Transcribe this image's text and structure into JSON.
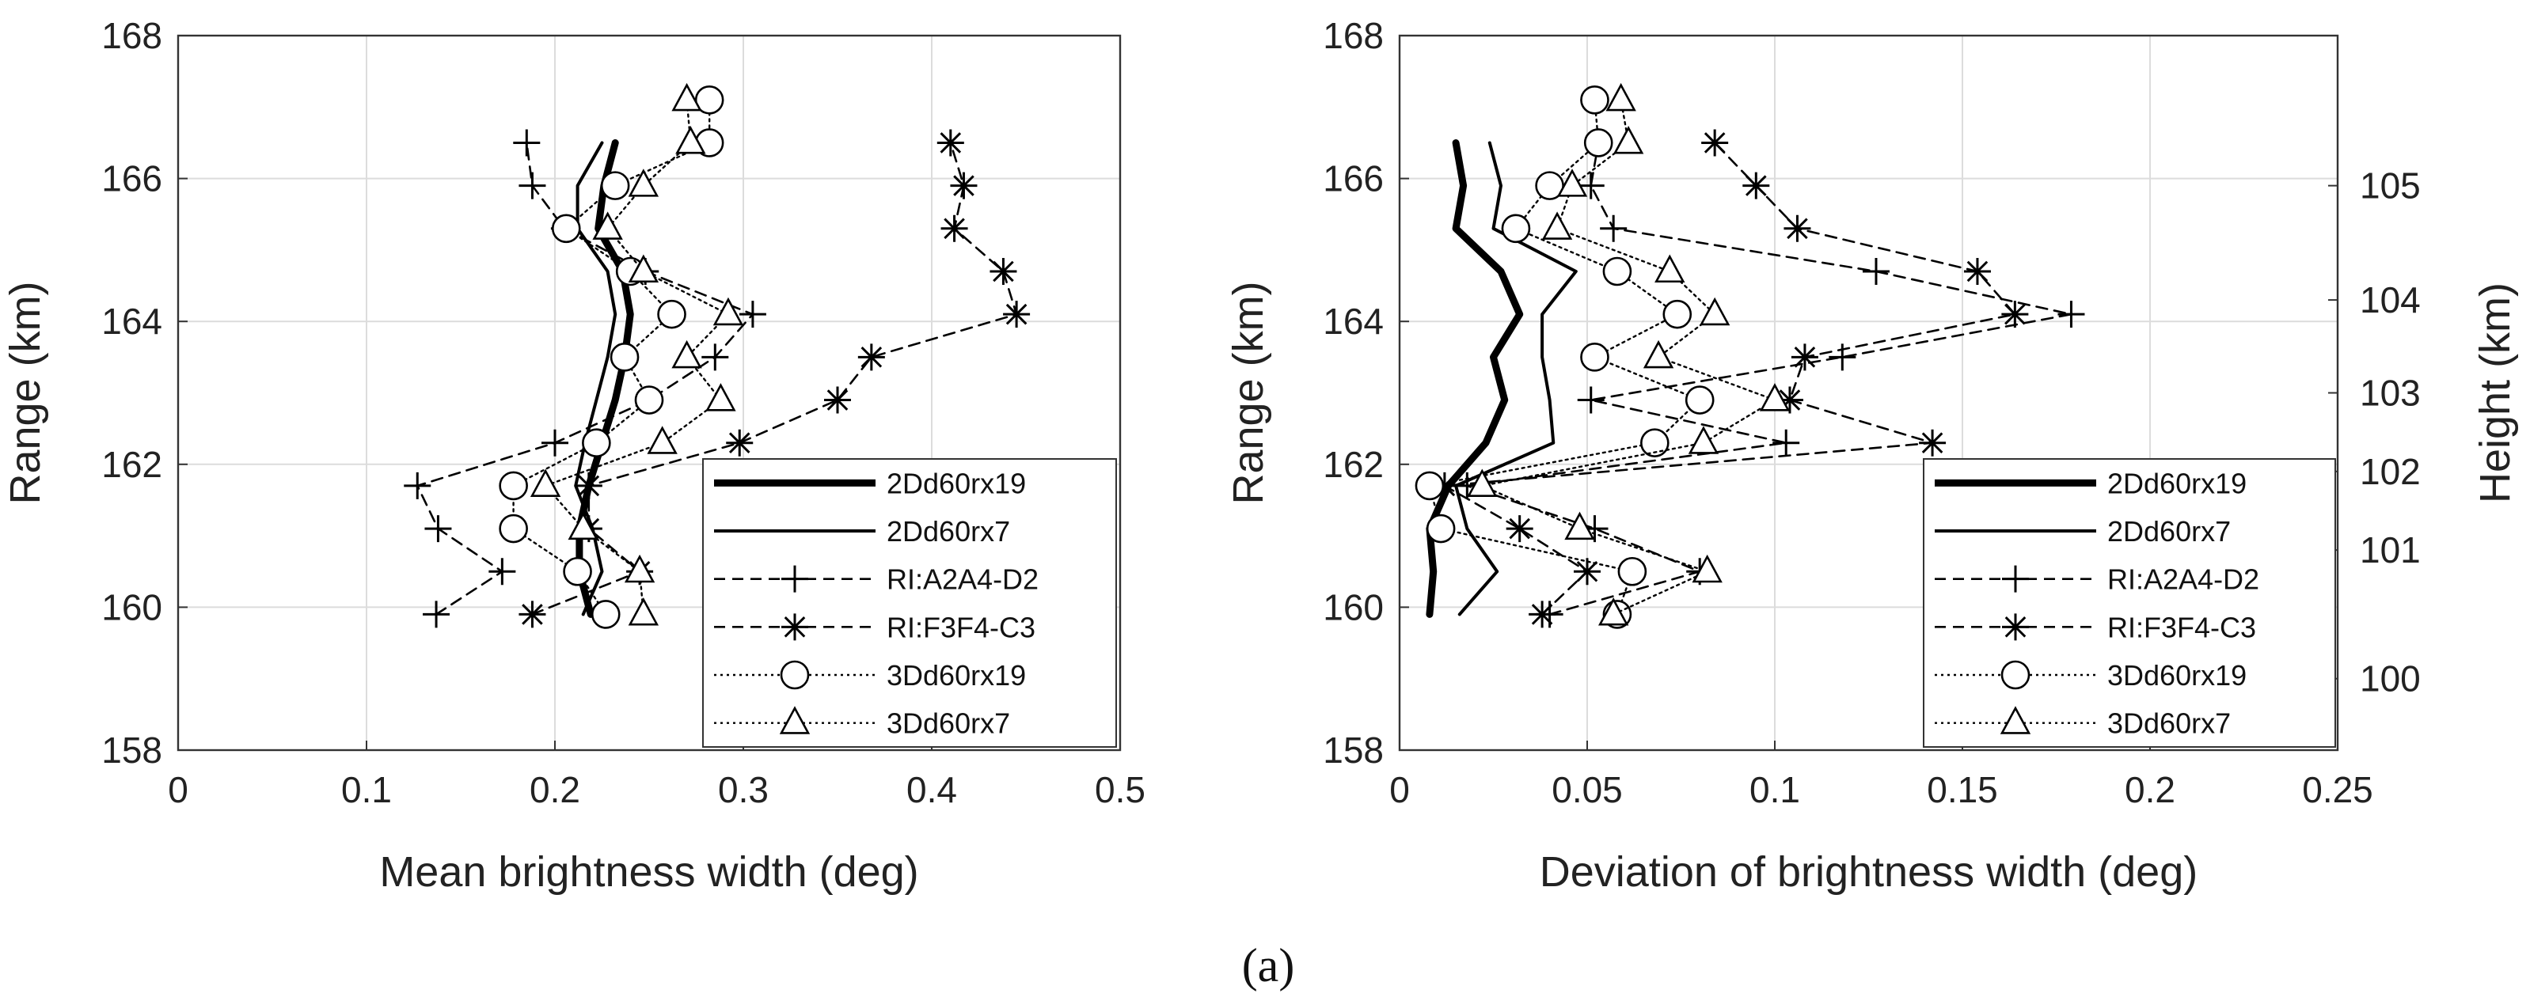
{
  "caption": "(a)",
  "chart_data": [
    {
      "type": "line",
      "panel": "left",
      "title": "",
      "xlabel": "Mean brightness width (deg)",
      "ylabel": "Range (km)",
      "xlim": [
        0,
        0.5
      ],
      "ylim": [
        158,
        168
      ],
      "xticks": [
        "0",
        "0.1",
        "0.2",
        "0.3",
        "0.4",
        "0.5"
      ],
      "yticks": [
        "158",
        "160",
        "162",
        "164",
        "166",
        "168"
      ],
      "grid": true,
      "legend_position": "bottom-right",
      "series": [
        {
          "name": "2Dd60rx19",
          "style": "thick",
          "points": [
            [
              0.219,
              159.9
            ],
            [
              0.213,
              160.5
            ],
            [
              0.213,
              161.1
            ],
            [
              0.218,
              161.7
            ],
            [
              0.225,
              162.3
            ],
            [
              0.232,
              162.9
            ],
            [
              0.237,
              163.5
            ],
            [
              0.24,
              164.1
            ],
            [
              0.236,
              164.7
            ],
            [
              0.223,
              165.3
            ],
            [
              0.226,
              165.9
            ],
            [
              0.232,
              166.5
            ]
          ]
        },
        {
          "name": "2Dd60rx7",
          "style": "thin",
          "points": [
            [
              0.215,
              159.9
            ],
            [
              0.225,
              160.5
            ],
            [
              0.22,
              161.1
            ],
            [
              0.211,
              161.7
            ],
            [
              0.216,
              162.3
            ],
            [
              0.222,
              162.9
            ],
            [
              0.228,
              163.5
            ],
            [
              0.232,
              164.1
            ],
            [
              0.228,
              164.7
            ],
            [
              0.212,
              165.3
            ],
            [
              0.212,
              165.9
            ],
            [
              0.225,
              166.5
            ]
          ]
        },
        {
          "name": "RI:A2A4-D2",
          "style": "dashed",
          "marker": "plus",
          "points": [
            [
              0.137,
              159.9
            ],
            [
              0.172,
              160.5
            ],
            [
              0.138,
              161.1
            ],
            [
              0.127,
              161.7
            ],
            [
              0.2,
              162.3
            ],
            [
              0.25,
              162.9
            ],
            [
              0.285,
              163.5
            ],
            [
              0.305,
              164.1
            ],
            [
              0.248,
              164.7
            ],
            [
              0.205,
              165.3
            ],
            [
              0.188,
              165.9
            ],
            [
              0.185,
              166.5
            ]
          ]
        },
        {
          "name": "RI:F3F4-C3",
          "style": "dashed",
          "marker": "star",
          "points": [
            [
              0.188,
              159.9
            ],
            [
              0.245,
              160.5
            ],
            [
              0.218,
              161.1
            ],
            [
              0.218,
              161.7
            ],
            [
              0.298,
              162.3
            ],
            [
              0.35,
              162.9
            ],
            [
              0.368,
              163.5
            ],
            [
              0.445,
              164.1
            ],
            [
              0.438,
              164.7
            ],
            [
              0.412,
              165.3
            ],
            [
              0.417,
              165.9
            ],
            [
              0.41,
              166.5
            ]
          ]
        },
        {
          "name": "3Dd60rx19",
          "style": "dotted",
          "marker": "circle",
          "points": [
            [
              0.227,
              159.9
            ],
            [
              0.212,
              160.5
            ],
            [
              0.178,
              161.1
            ],
            [
              0.178,
              161.7
            ],
            [
              0.222,
              162.3
            ],
            [
              0.25,
              162.9
            ],
            [
              0.237,
              163.5
            ],
            [
              0.262,
              164.1
            ],
            [
              0.24,
              164.7
            ],
            [
              0.206,
              165.3
            ],
            [
              0.232,
              165.9
            ],
            [
              0.282,
              166.5
            ],
            [
              0.282,
              167.1
            ]
          ]
        },
        {
          "name": "3Dd60rx7",
          "style": "dotted",
          "marker": "triangle",
          "points": [
            [
              0.247,
              159.9
            ],
            [
              0.245,
              160.5
            ],
            [
              0.215,
              161.1
            ],
            [
              0.195,
              161.7
            ],
            [
              0.257,
              162.3
            ],
            [
              0.288,
              162.9
            ],
            [
              0.27,
              163.5
            ],
            [
              0.292,
              164.1
            ],
            [
              0.247,
              164.7
            ],
            [
              0.228,
              165.3
            ],
            [
              0.247,
              165.9
            ],
            [
              0.272,
              166.5
            ],
            [
              0.27,
              167.1
            ]
          ]
        }
      ]
    },
    {
      "type": "line",
      "panel": "right",
      "title": "",
      "xlabel": "Deviation of brightness width (deg)",
      "ylabel": "Range (km)",
      "y2label": "Height (km)",
      "xlim": [
        0,
        0.25
      ],
      "ylim": [
        158,
        168
      ],
      "xticks": [
        "0",
        "0.05",
        "0.1",
        "0.15",
        "0.2",
        "0.25"
      ],
      "yticks": [
        "158",
        "160",
        "162",
        "164",
        "166",
        "168"
      ],
      "y2ticks": [
        {
          "label": "100",
          "range_km": 159.0
        },
        {
          "label": "101",
          "range_km": 160.8
        },
        {
          "label": "102",
          "range_km": 161.9
        },
        {
          "label": "103",
          "range_km": 163.0
        },
        {
          "label": "104",
          "range_km": 164.3
        },
        {
          "label": "105",
          "range_km": 165.9
        }
      ],
      "grid": true,
      "legend_position": "bottom-right",
      "series": [
        {
          "name": "2Dd60rx19",
          "style": "thick",
          "points": [
            [
              0.008,
              159.9
            ],
            [
              0.009,
              160.5
            ],
            [
              0.008,
              161.1
            ],
            [
              0.013,
              161.7
            ],
            [
              0.023,
              162.3
            ],
            [
              0.028,
              162.9
            ],
            [
              0.025,
              163.5
            ],
            [
              0.032,
              164.1
            ],
            [
              0.027,
              164.7
            ],
            [
              0.015,
              165.3
            ],
            [
              0.017,
              165.9
            ],
            [
              0.015,
              166.5
            ]
          ]
        },
        {
          "name": "2Dd60rx7",
          "style": "thin",
          "points": [
            [
              0.016,
              159.9
            ],
            [
              0.026,
              160.5
            ],
            [
              0.018,
              161.1
            ],
            [
              0.015,
              161.7
            ],
            [
              0.041,
              162.3
            ],
            [
              0.04,
              162.9
            ],
            [
              0.038,
              163.5
            ],
            [
              0.038,
              164.1
            ],
            [
              0.047,
              164.7
            ],
            [
              0.025,
              165.3
            ],
            [
              0.027,
              165.9
            ],
            [
              0.024,
              166.5
            ]
          ]
        },
        {
          "name": "RI:A2A4-D2",
          "style": "dashed",
          "marker": "plus",
          "points": [
            [
              0.04,
              159.9
            ],
            [
              0.08,
              160.5
            ],
            [
              0.052,
              161.1
            ],
            [
              0.018,
              161.7
            ],
            [
              0.103,
              162.3
            ],
            [
              0.051,
              162.9
            ],
            [
              0.118,
              163.5
            ],
            [
              0.179,
              164.1
            ],
            [
              0.127,
              164.7
            ],
            [
              0.057,
              165.3
            ],
            [
              0.051,
              165.9
            ],
            [
              0.053,
              166.5
            ]
          ]
        },
        {
          "name": "RI:F3F4-C3",
          "style": "dashed",
          "marker": "star",
          "points": [
            [
              0.038,
              159.9
            ],
            [
              0.05,
              160.5
            ],
            [
              0.032,
              161.1
            ],
            [
              0.012,
              161.7
            ],
            [
              0.142,
              162.3
            ],
            [
              0.104,
              162.9
            ],
            [
              0.108,
              163.5
            ],
            [
              0.164,
              164.1
            ],
            [
              0.154,
              164.7
            ],
            [
              0.106,
              165.3
            ],
            [
              0.095,
              165.9
            ],
            [
              0.084,
              166.5
            ]
          ]
        },
        {
          "name": "3Dd60rx19",
          "style": "dotted",
          "marker": "circle",
          "points": [
            [
              0.058,
              159.9
            ],
            [
              0.062,
              160.5
            ],
            [
              0.011,
              161.1
            ],
            [
              0.008,
              161.7
            ],
            [
              0.068,
              162.3
            ],
            [
              0.08,
              162.9
            ],
            [
              0.052,
              163.5
            ],
            [
              0.074,
              164.1
            ],
            [
              0.058,
              164.7
            ],
            [
              0.031,
              165.3
            ],
            [
              0.04,
              165.9
            ],
            [
              0.053,
              166.5
            ],
            [
              0.052,
              167.1
            ]
          ]
        },
        {
          "name": "3Dd60rx7",
          "style": "dotted",
          "marker": "triangle",
          "points": [
            [
              0.057,
              159.9
            ],
            [
              0.082,
              160.5
            ],
            [
              0.048,
              161.1
            ],
            [
              0.022,
              161.7
            ],
            [
              0.081,
              162.3
            ],
            [
              0.1,
              162.9
            ],
            [
              0.069,
              163.5
            ],
            [
              0.084,
              164.1
            ],
            [
              0.072,
              164.7
            ],
            [
              0.042,
              165.3
            ],
            [
              0.046,
              165.9
            ],
            [
              0.061,
              166.5
            ],
            [
              0.059,
              167.1
            ]
          ]
        }
      ]
    }
  ]
}
